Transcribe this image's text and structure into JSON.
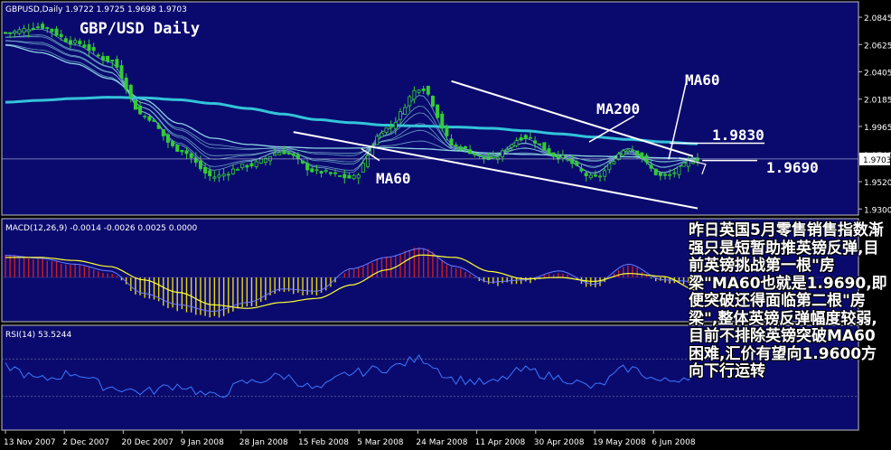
{
  "chart_data": [
    {
      "type": "candlestick",
      "header": "GBPUSD,Daily",
      "ohlc_label": "1.9722 1.9725 1.9698 1.9703",
      "title": "GBP/USD Daily",
      "ylim": [
        1.928,
        2.094
      ],
      "y_ticks": [
        "2.0845",
        "2.0625",
        "2.0405",
        "2.0185",
        "1.9965",
        "1.9740",
        "1.9520",
        "1.9300"
      ],
      "current_price": "1.9703",
      "annotations": [
        {
          "text": "MA200"
        },
        {
          "text": "MA60"
        },
        {
          "text": "MA60"
        },
        {
          "text": "1.9830"
        },
        {
          "text": "1.9690"
        }
      ],
      "series": [
        {
          "name": "MA200",
          "values": [
            2.016,
            2.0175,
            2.019,
            2.02,
            2.0195,
            2.018,
            2.015,
            2.011,
            2.0065,
            2.002,
            1.9995,
            1.9975,
            1.9968,
            1.996,
            1.995,
            1.993,
            1.9905,
            1.988,
            1.986,
            1.984,
            1.9825
          ]
        },
        {
          "name": "MA60",
          "values": [
            2.062,
            2.056,
            2.047,
            2.035,
            2.018,
            1.999,
            1.987,
            1.982,
            1.98,
            1.979,
            1.979,
            1.9795,
            1.9785,
            1.977,
            1.975,
            1.974,
            1.9735,
            1.9725,
            1.972,
            1.9712,
            1.9705
          ]
        },
        {
          "name": "Close",
          "values": [
            2.072,
            2.077,
            2.064,
            2.05,
            2.005,
            1.978,
            1.956,
            1.965,
            1.976,
            1.96,
            1.955,
            1.995,
            2.028,
            1.98,
            1.97,
            1.988,
            1.972,
            1.955,
            1.979,
            1.956,
            1.9703
          ]
        }
      ]
    },
    {
      "type": "bar",
      "header": "MACD(12,26,9) -0.0014 -0.0026 0.0025 0.0000",
      "values": [
        0.0045,
        0.0038,
        0.0025,
        0.001,
        -0.004,
        -0.0065,
        -0.008,
        -0.006,
        -0.003,
        -0.0035,
        0.0015,
        0.004,
        0.006,
        0.002,
        -0.0015,
        -0.001,
        0.001,
        -0.002,
        0.0025,
        -0.001,
        -0.0014
      ],
      "series": [
        {
          "name": "signal",
          "values": [
            0.004,
            0.004,
            0.0034,
            0.0022,
            -0.0005,
            -0.003,
            -0.0055,
            -0.0062,
            -0.005,
            -0.0042,
            -0.0015,
            0.0015,
            0.0045,
            0.004,
            0.0012,
            -0.0003,
            0.0,
            -0.0008,
            0.0008,
            0.0002,
            -0.0026
          ]
        }
      ]
    },
    {
      "type": "line",
      "header": "RSI(14) 53.5244",
      "series": [
        {
          "name": "RSI(14)",
          "values": [
            62,
            48,
            55,
            40,
            35,
            42,
            30,
            45,
            52,
            38,
            55,
            60,
            70,
            48,
            44,
            58,
            50,
            40,
            60,
            46,
            53.5244
          ]
        }
      ]
    }
  ],
  "x_labels": [
    "13 Nov 2007",
    "2 Dec 2007",
    "20 Dec 2007",
    "9 Jan 2008",
    "28 Jan 2008",
    "15 Feb 2008",
    "5 Mar 2008",
    "24 Mar 2008",
    "11 Apr 2008",
    "30 Apr 2008",
    "19 May 2008",
    "6 Jun 2008"
  ],
  "note": "昨日英国5月零售销售指数渐强只是短暂助推英镑反弹,目前英镑挑战第一根\"房梁\"MA60也就是1.9690,即便突破还得面临第二根\"房梁\",整体英镑反弹幅度较弱,目前不排除英镑突破MA60困难,汇价有望向1.9600方向下行运转",
  "colors": {
    "background": "#0a0a6e",
    "ma200": "#33c4d9",
    "ma_fan": "#8fd4e6",
    "bull": "#33cc33",
    "bear": "#33cc33",
    "macd_pos": "#d21c1c",
    "macd_neg": "#e6d80a",
    "signal": "#ffff33",
    "rsi": "#3c78ff",
    "text": "#ffffff"
  }
}
